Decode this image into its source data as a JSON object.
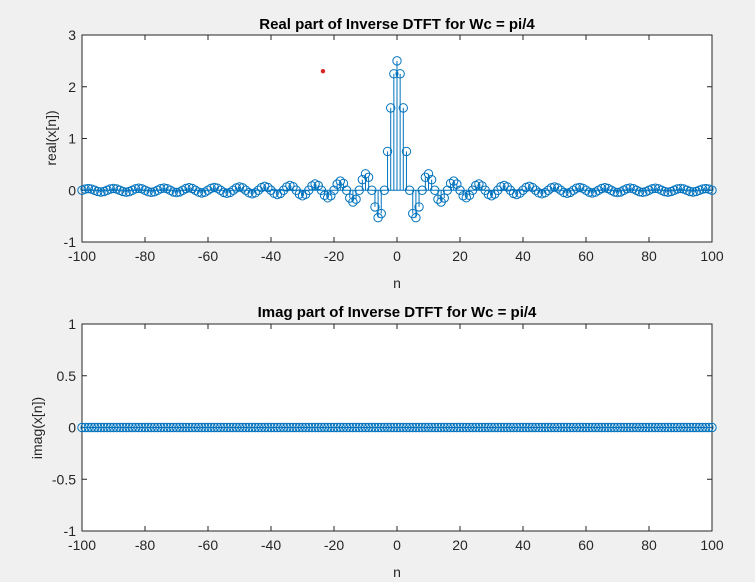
{
  "chart_data": [
    {
      "type": "stem",
      "title": "Real part of Inverse DTFT for Wc = pi/4",
      "xlabel": "n",
      "ylabel": "real(x[n])",
      "xlim": [
        -100,
        100
      ],
      "ylim": [
        -1,
        3
      ],
      "xticks": [
        -100,
        -80,
        -60,
        -40,
        -20,
        0,
        20,
        40,
        60,
        80,
        100
      ],
      "yticks": [
        -1,
        0,
        1,
        2,
        3
      ],
      "grid": false,
      "marker_color": "#0072bd",
      "formula": "real(x[n]) = 2.5*sinc(n/4) for n = -100..100",
      "n_range": [
        -100,
        100
      ],
      "peak": 2.5,
      "annotation_point": {
        "x": -23.5,
        "y": 2.3,
        "color": "#d62728"
      }
    },
    {
      "type": "stem",
      "title": "Imag part of Inverse DTFT for Wc = pi/4",
      "xlabel": "n",
      "ylabel": "imag(x[n])",
      "xlim": [
        -100,
        100
      ],
      "ylim": [
        -1,
        1
      ],
      "xticks": [
        -100,
        -80,
        -60,
        -40,
        -20,
        0,
        20,
        40,
        60,
        80,
        100
      ],
      "yticks": [
        -1,
        -0.5,
        0,
        0.5,
        1
      ],
      "grid": false,
      "marker_color": "#0072bd",
      "n_range": [
        -100,
        100
      ],
      "values_all": 0
    }
  ]
}
